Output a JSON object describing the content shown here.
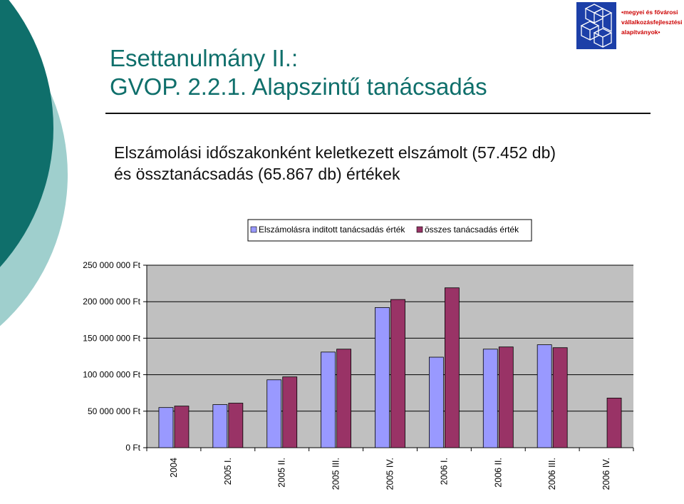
{
  "slide": {
    "title_line1": "Esettanulmány II.:",
    "title_line2": "GVOP. 2.2.1. Alapszintű tanácsadás",
    "subtitle_line1": "Elszámolási időszakonként keletkezett elszámolt (57.452 db)",
    "subtitle_line2": "és össztanácsadás (65.867 db) értékek",
    "theme_colors": {
      "teal_dark": "#0f6f6b",
      "teal_light": "#9fcfcd"
    }
  },
  "logo": {
    "lines": [
      "•megyei és fővárosi",
      "vállalkozásfejlesztési",
      "alapítványok•"
    ],
    "color_red": "#cc0000",
    "color_blue": "#1c3fa8"
  },
  "chart_data": {
    "type": "bar",
    "categories": [
      "2004",
      "2005 I.",
      "2005 II.",
      "2005 III.",
      "2005 IV.",
      "2006 I.",
      "2006 II.",
      "2006 III.",
      "2006 IV."
    ],
    "series": [
      {
        "name": "Elszámolásra inditott tanácsadás érték",
        "color": "#9999ff",
        "values": [
          55000000,
          59000000,
          93000000,
          131000000,
          192000000,
          124000000,
          135000000,
          141000000,
          null
        ]
      },
      {
        "name": "összes tanácsadás érték",
        "color": "#993366",
        "values": [
          57000000,
          61000000,
          97000000,
          135000000,
          203000000,
          219000000,
          138000000,
          137000000,
          68000000
        ]
      }
    ],
    "y_ticks": [
      "0 Ft",
      "50 000 000 Ft",
      "100 000 000 Ft",
      "150 000 000 Ft",
      "200 000 000 Ft",
      "250 000 000 Ft"
    ],
    "y_tick_values": [
      0,
      50000000,
      100000000,
      150000000,
      200000000,
      250000000
    ],
    "ylim": [
      0,
      250000000
    ],
    "grid": true,
    "legend_position": "top",
    "plot_background": "#c0c0c0"
  }
}
